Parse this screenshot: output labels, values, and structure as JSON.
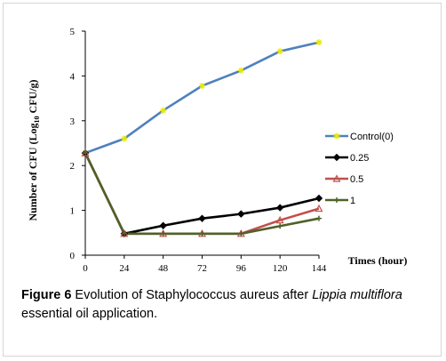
{
  "chart_data": {
    "type": "line",
    "xlabel": "Times (hour)",
    "ylabel_pre": "Number of CFU (Log",
    "ylabel_sub": "10",
    "ylabel_post": " CFU/g)",
    "x": [
      0,
      24,
      48,
      72,
      96,
      120,
      144
    ],
    "xlim": [
      0,
      144
    ],
    "ylim": [
      0,
      5
    ],
    "yticks": [
      0,
      1,
      2,
      3,
      4,
      5
    ],
    "grid": false,
    "legend_position": "right",
    "series": [
      {
        "name": "Control(0)",
        "color": "#4f81bd",
        "marker": "star",
        "values": [
          2.28,
          2.6,
          3.23,
          3.78,
          4.12,
          4.55,
          4.75
        ]
      },
      {
        "name": "0.25",
        "color": "#000000",
        "marker": "diamond",
        "values": [
          2.28,
          0.48,
          0.66,
          0.82,
          0.92,
          1.06,
          1.27
        ]
      },
      {
        "name": "0.5",
        "color": "#c0504d",
        "marker": "triangle",
        "values": [
          2.28,
          0.48,
          0.48,
          0.48,
          0.48,
          0.78,
          1.04
        ]
      },
      {
        "name": "1",
        "color": "#4f6228",
        "marker": "plus",
        "values": [
          2.28,
          0.48,
          0.48,
          0.48,
          0.48,
          0.65,
          0.82
        ]
      }
    ]
  },
  "caption": {
    "label": "Figure 6",
    "text_1": " Evolution of Staphylococcus aureus after ",
    "italic": "Lippia multiflora",
    "text_2": " essential oil application."
  }
}
